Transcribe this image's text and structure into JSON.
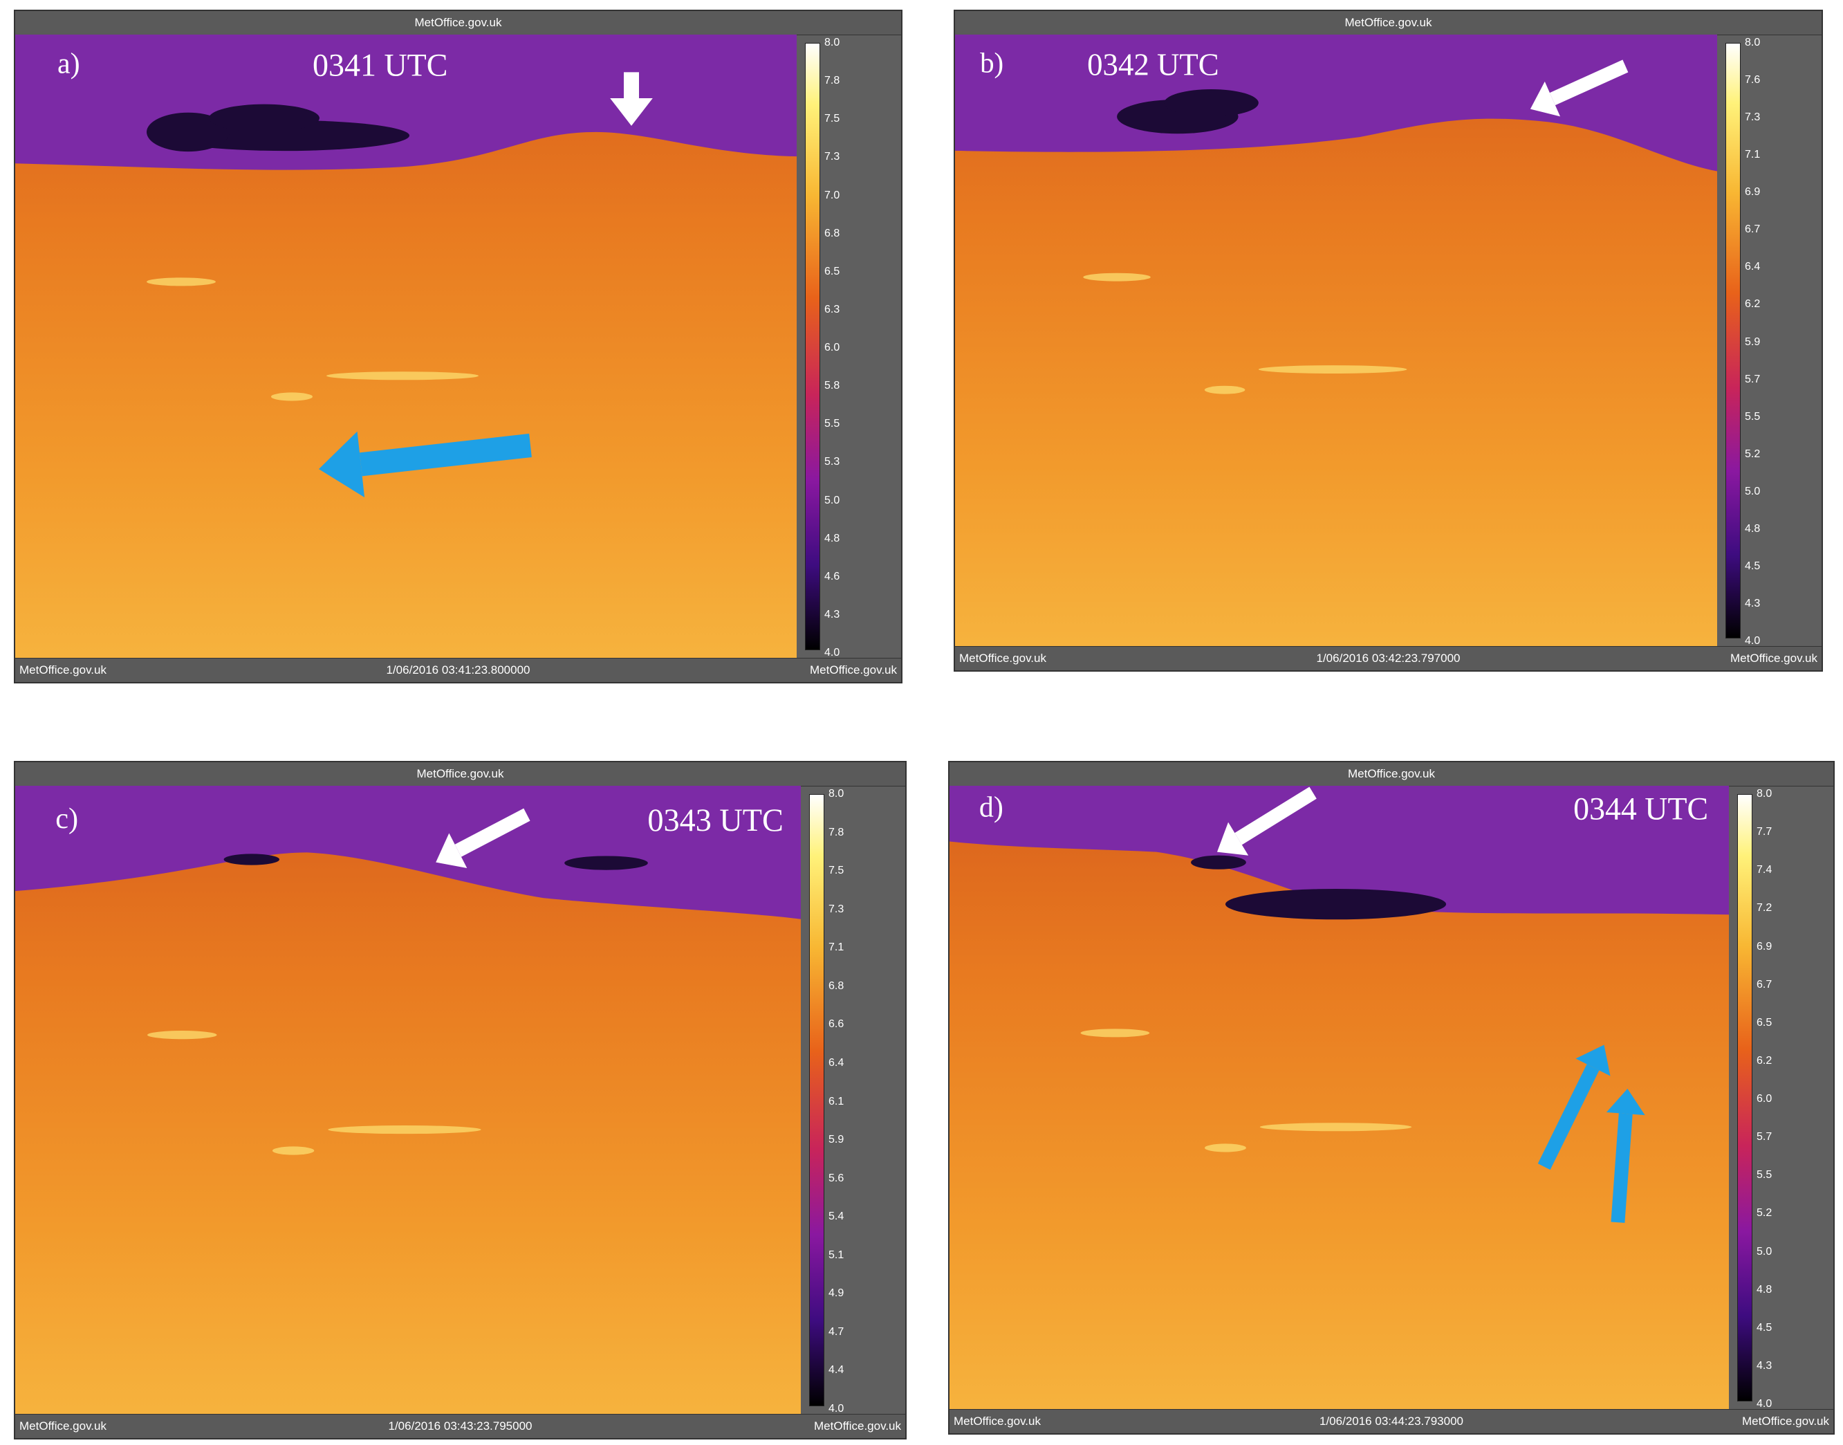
{
  "panels": [
    {
      "header": "MetOffice.gov.uk",
      "label": "a)",
      "time": "0341 UTC",
      "colorbar_ticks": [
        "8.0",
        "7.8",
        "7.5",
        "7.3",
        "7.0",
        "6.8",
        "6.5",
        "6.3",
        "6.0",
        "5.8",
        "5.5",
        "5.3",
        "5.0",
        "4.8",
        "4.6",
        "4.3",
        "4.0"
      ],
      "footer_left": "MetOffice.gov.uk",
      "footer_center": "1/06/2016 03:41:23.800000",
      "footer_right": "MetOffice.gov.uk"
    },
    {
      "header": "MetOffice.gov.uk",
      "label": "b)",
      "time": "0342 UTC",
      "colorbar_ticks": [
        "8.0",
        "7.6",
        "7.3",
        "7.1",
        "6.9",
        "6.7",
        "6.4",
        "6.2",
        "5.9",
        "5.7",
        "5.5",
        "5.2",
        "5.0",
        "4.8",
        "4.5",
        "4.3",
        "4.0"
      ],
      "footer_left": "MetOffice.gov.uk",
      "footer_center": "1/06/2016 03:42:23.797000",
      "footer_right": "MetOffice.gov.uk"
    },
    {
      "header": "MetOffice.gov.uk",
      "label": "c)",
      "time": "0343 UTC",
      "colorbar_ticks": [
        "8.0",
        "7.8",
        "7.5",
        "7.3",
        "7.1",
        "6.8",
        "6.6",
        "6.4",
        "6.1",
        "5.9",
        "5.6",
        "5.4",
        "5.1",
        "4.9",
        "4.7",
        "4.4",
        "4.0"
      ],
      "footer_left": "MetOffice.gov.uk",
      "footer_center": "1/06/2016 03:43:23.795000",
      "footer_right": "MetOffice.gov.uk"
    },
    {
      "header": "MetOffice.gov.uk",
      "label": "d)",
      "time": "0344 UTC",
      "colorbar_ticks": [
        "8.0",
        "7.7",
        "7.4",
        "7.2",
        "6.9",
        "6.7",
        "6.5",
        "6.2",
        "6.0",
        "5.7",
        "5.5",
        "5.2",
        "5.0",
        "4.8",
        "4.5",
        "4.3",
        "4.0"
      ],
      "footer_left": "MetOffice.gov.uk",
      "footer_center": "1/06/2016 03:44:23.793000",
      "footer_right": "MetOffice.gov.uk"
    }
  ]
}
